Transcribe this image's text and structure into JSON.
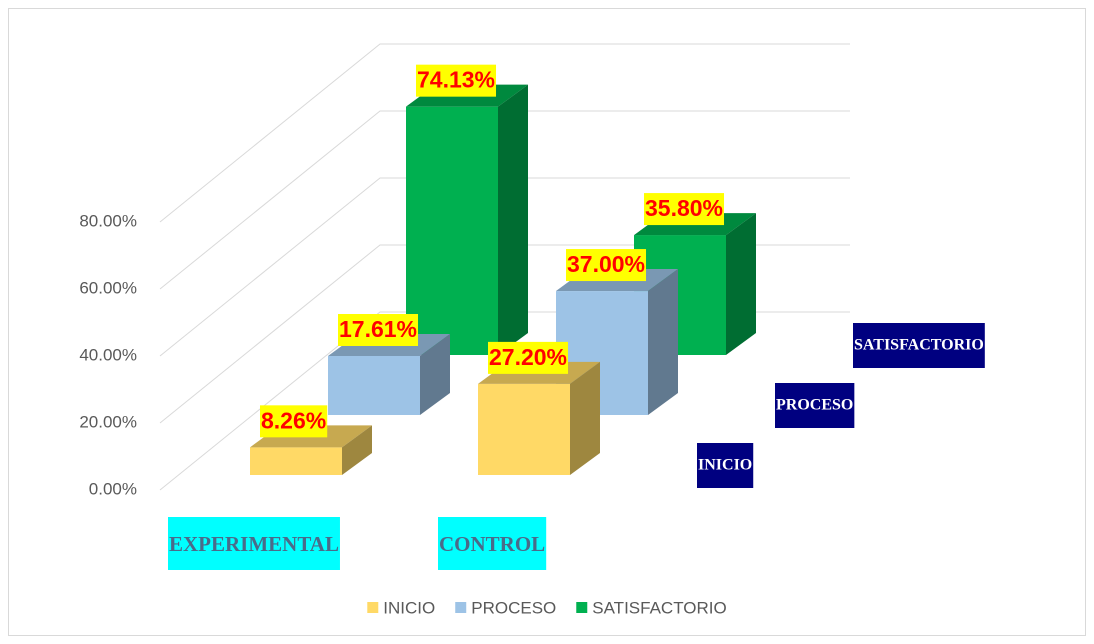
{
  "chart_data": {
    "type": "bar",
    "categories": [
      "EXPERIMENTAL",
      "CONTROL"
    ],
    "series": [
      {
        "name": "INICIO",
        "color": "#ffd966",
        "values": [
          8.26,
          27.2
        ],
        "value_labels": [
          "8.26%",
          "27.20%"
        ]
      },
      {
        "name": "PROCESO",
        "color": "#9dc3e6",
        "values": [
          17.61,
          37.0
        ],
        "value_labels": [
          "17.61%",
          "37.00%"
        ]
      },
      {
        "name": "SATISFACTORIO",
        "color": "#00b050",
        "values": [
          74.13,
          35.8
        ],
        "value_labels": [
          "74.13%",
          "35.80%"
        ]
      }
    ],
    "ylim": [
      0,
      80
    ],
    "yticks": [
      {
        "value": 0,
        "label": "0.00%"
      },
      {
        "value": 20,
        "label": "20.00%"
      },
      {
        "value": 40,
        "label": "40.00%"
      },
      {
        "value": 60,
        "label": "60.00%"
      },
      {
        "value": 80,
        "label": "80.00%"
      }
    ],
    "grid": true,
    "legend": "bottom"
  }
}
